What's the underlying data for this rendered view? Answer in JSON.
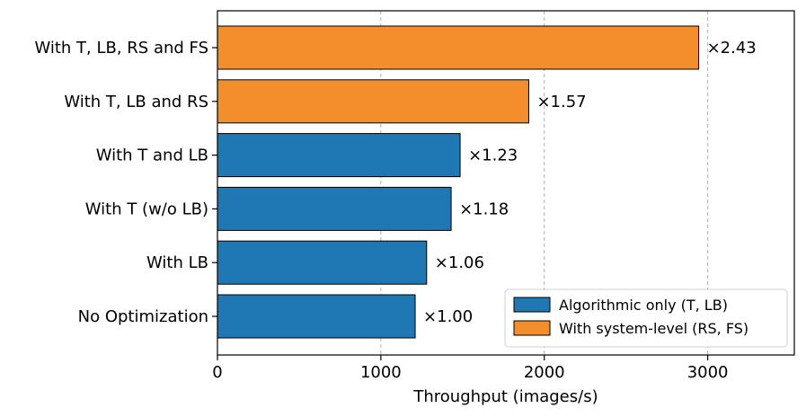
{
  "chart_data": {
    "type": "bar",
    "orientation": "horizontal",
    "categories": [
      "No Optimization",
      "With LB",
      "With T (w/o LB)",
      "With T and LB",
      "With T, LB and RS",
      "With T, LB, RS and FS"
    ],
    "values": [
      1210,
      1280,
      1430,
      1485,
      1905,
      2945
    ],
    "bar_labels": [
      "×1.00",
      "×1.06",
      "×1.18",
      "×1.23",
      "×1.57",
      "×2.43"
    ],
    "groups": [
      "Algorithmic only (T, LB)",
      "Algorithmic only (T, LB)",
      "Algorithmic only (T, LB)",
      "Algorithmic only (T, LB)",
      "With system-level (RS, FS)",
      "With system-level (RS, FS)"
    ],
    "legend": [
      {
        "label": "Algorithmic only (T, LB)",
        "color": "#1f77b4"
      },
      {
        "label": "With system-level (RS, FS)",
        "color": "#f28e2b"
      }
    ],
    "legend_position": "lower-right",
    "xlabel": "Throughput (images/s)",
    "ylabel": "",
    "title": "",
    "xlim": [
      0,
      3530
    ],
    "xticks": [
      0,
      1000,
      2000,
      3000
    ],
    "grid": "x-dashed"
  }
}
